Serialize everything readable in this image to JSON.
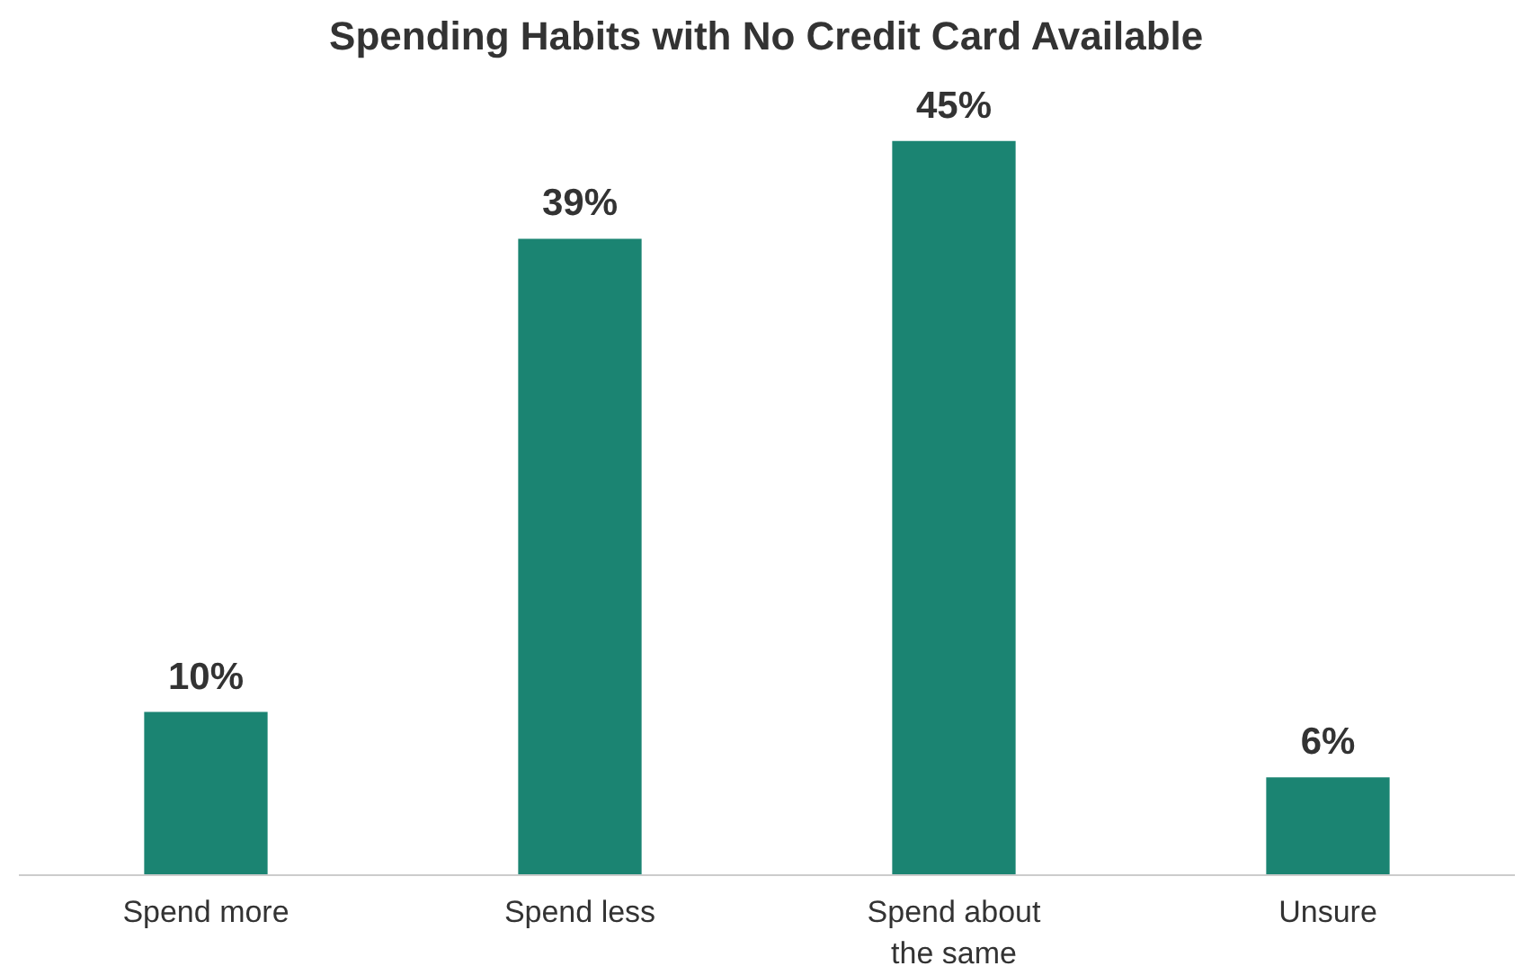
{
  "chart_data": {
    "type": "bar",
    "title": "Spending Habits with No Credit Card Available",
    "categories": [
      "Spend more",
      "Spend less",
      "Spend about the same",
      "Unsure"
    ],
    "values": [
      10,
      39,
      45,
      6
    ],
    "value_labels": [
      "10%",
      "39%",
      "45%",
      "6%"
    ],
    "color": "#1b8472",
    "grid": false
  }
}
